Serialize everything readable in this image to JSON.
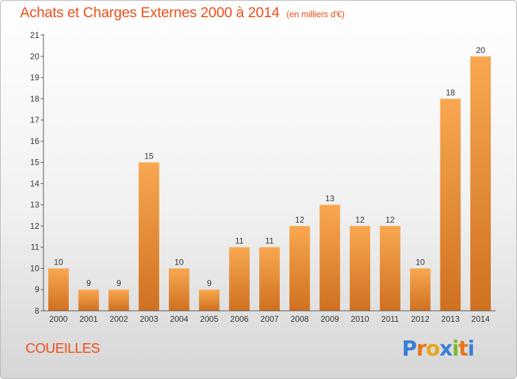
{
  "title": "Achats et Charges Externes 2000 à 2014",
  "subtitle": "(en milliers d'€)",
  "commune": "COUEILLES",
  "logo": {
    "letters": [
      "P",
      "r",
      "o",
      "x",
      "i",
      "t",
      "i"
    ],
    "colors": [
      "#3a7fd5",
      "#e8741c",
      "#e8a71c",
      "#3a7fd5",
      "#7cb82f",
      "#e8741c",
      "#3a7fd5"
    ]
  },
  "colors": {
    "bar_light": "#f8a850",
    "bar_dark": "#cf7020",
    "title": "#ef4e1c"
  },
  "chart_data": {
    "type": "bar",
    "categories": [
      "2000",
      "2001",
      "2002",
      "2003",
      "2004",
      "2005",
      "2006",
      "2007",
      "2008",
      "2009",
      "2010",
      "2011",
      "2012",
      "2013",
      "2014"
    ],
    "values": [
      10,
      9,
      9,
      15,
      10,
      9,
      11,
      11,
      12,
      13,
      12,
      12,
      10,
      18,
      20
    ],
    "data_labels": [
      "10",
      "9",
      "9",
      "15",
      "10",
      "9",
      "11",
      "11",
      "12",
      "13",
      "12",
      "12",
      "10",
      "18",
      "20"
    ],
    "yticks": [
      8,
      9,
      10,
      11,
      12,
      13,
      14,
      15,
      16,
      17,
      18,
      19,
      20,
      21
    ],
    "ylim": [
      8,
      21
    ],
    "grid": false
  }
}
